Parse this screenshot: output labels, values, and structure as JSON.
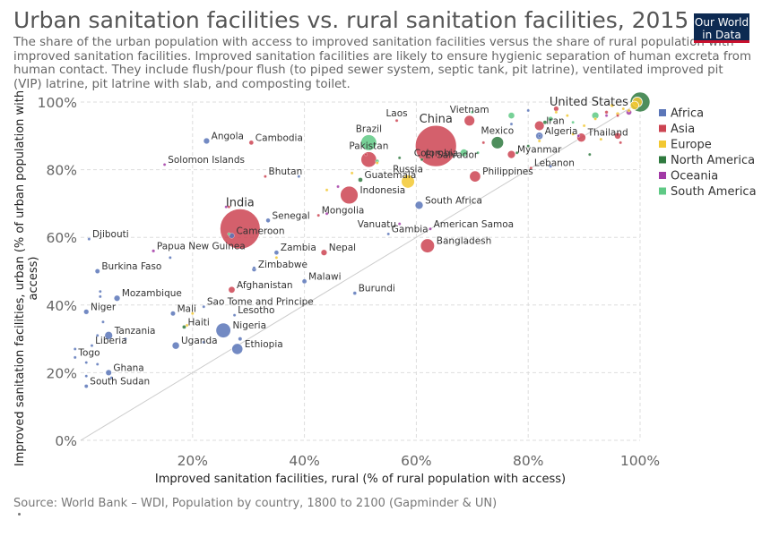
{
  "header": {
    "title": "Urban sanitation facilities vs. rural sanitation facilities, 2015",
    "subtitle": "The share of the urban population with access to improved sanitation facilities versus the share of rural population with improved sanitation facilities. Improved sanitation facilities are likely to ensure hygienic separation of human excreta from human contact. They include flush/pour flush (to piped sewer system, septic tank, pit latrine), ventilated improved pit (VIP) latrine, pit latrine with slab, and composting toilet.",
    "logo_line1": "Our World",
    "logo_line2": "in Data"
  },
  "footer": {
    "source": "Source: World Bank – WDI, Population by country, 1800 to 2100 (Gapminder & UN)"
  },
  "colors": {
    "Africa": "#5b76b8",
    "Asia": "#cc4452",
    "Europe": "#f2c832",
    "North America": "#2f7a3f",
    "Oceania": "#a23aa6",
    "South America": "#5fc985",
    "grid": "#dddddd",
    "diagonal": "#cccccc"
  },
  "chart_data": {
    "type": "scatter",
    "title": "Urban sanitation facilities vs. rural sanitation facilities, 2015",
    "xlabel": "Improved sanitation facilities, rural (% of rural population with access)",
    "ylabel": "Improved sanitation facilities, urban (% of urban population with access)",
    "xlim": [
      0,
      100
    ],
    "ylim": [
      0,
      100
    ],
    "x_ticks": [
      20,
      40,
      60,
      80,
      100
    ],
    "x_tick_labels": [
      "20%",
      "40%",
      "60%",
      "80%",
      "100%"
    ],
    "y_ticks": [
      0,
      20,
      40,
      60,
      80,
      100
    ],
    "y_tick_labels": [
      "0%",
      "20%",
      "40%",
      "60%",
      "80%",
      "100%"
    ],
    "grid": true,
    "legend_position": "right",
    "legend": [
      "Africa",
      "Asia",
      "Europe",
      "North America",
      "Oceania",
      "South America"
    ],
    "reference_line": "y = x",
    "size_variable": "population",
    "labeled_points": [
      {
        "name": "Laos",
        "region": "Asia",
        "x": 56.5,
        "y": 94.5,
        "pop": 7,
        "label_dir": "above"
      },
      {
        "name": "Vietnam",
        "region": "Asia",
        "x": 69.5,
        "y": 94.5,
        "pop": 93,
        "label_dir": "above"
      },
      {
        "name": "China",
        "region": "Asia",
        "x": 63.5,
        "y": 87,
        "pop": 1397,
        "label_dir": "above",
        "big": true
      },
      {
        "name": "United States",
        "region": "North America",
        "x": 100,
        "y": 100,
        "pop": 320,
        "label_dir": "left",
        "big": true
      },
      {
        "name": "Iran",
        "region": "Asia",
        "x": 82,
        "y": 93,
        "pop": 79,
        "label_dir": "right"
      },
      {
        "name": "Algeria",
        "region": "Africa",
        "x": 82,
        "y": 90,
        "pop": 40,
        "label_dir": "right"
      },
      {
        "name": "Thailand",
        "region": "Asia",
        "x": 89.5,
        "y": 89.5,
        "pop": 68,
        "label_dir": "right"
      },
      {
        "name": "Angola",
        "region": "Africa",
        "x": 22.5,
        "y": 88.5,
        "pop": 28,
        "label_dir": "right"
      },
      {
        "name": "Cambodia",
        "region": "Asia",
        "x": 30.5,
        "y": 88,
        "pop": 16,
        "label_dir": "right"
      },
      {
        "name": "Brazil",
        "region": "South America",
        "x": 51.5,
        "y": 88,
        "pop": 204,
        "label_dir": "above"
      },
      {
        "name": "Mexico",
        "region": "North America",
        "x": 74.5,
        "y": 88,
        "pop": 125,
        "label_dir": "above"
      },
      {
        "name": "Colombia",
        "region": "South America",
        "x": 68.5,
        "y": 85,
        "pop": 48,
        "label_dir": "left"
      },
      {
        "name": "Myanmar",
        "region": "Asia",
        "x": 77,
        "y": 84.5,
        "pop": 53,
        "label_dir": "right"
      },
      {
        "name": "Pakistan",
        "region": "Asia",
        "x": 51.5,
        "y": 83,
        "pop": 199,
        "label_dir": "above"
      },
      {
        "name": "El Salvador",
        "region": "North America",
        "x": 61,
        "y": 83,
        "pop": 6,
        "label_dir": "right"
      },
      {
        "name": "Solomon Islands",
        "region": "Oceania",
        "x": 15,
        "y": 81.5,
        "pop": 0.6,
        "label_dir": "right"
      },
      {
        "name": "Lebanon",
        "region": "Asia",
        "x": 80.5,
        "y": 80.5,
        "pop": 6,
        "label_dir": "right"
      },
      {
        "name": "Philippines",
        "region": "Asia",
        "x": 70.5,
        "y": 78,
        "pop": 102,
        "label_dir": "right"
      },
      {
        "name": "Russia",
        "region": "Europe",
        "x": 58.5,
        "y": 76.5,
        "pop": 144,
        "label_dir": "above"
      },
      {
        "name": "Bhutan",
        "region": "Asia",
        "x": 33,
        "y": 78,
        "pop": 0.8,
        "label_dir": "right"
      },
      {
        "name": "Guatemala",
        "region": "North America",
        "x": 50,
        "y": 77,
        "pop": 16,
        "label_dir": "right"
      },
      {
        "name": "Indonesia",
        "region": "Asia",
        "x": 48,
        "y": 72.5,
        "pop": 258,
        "label_dir": "right"
      },
      {
        "name": "South Africa",
        "region": "Africa",
        "x": 60.5,
        "y": 69.5,
        "pop": 55,
        "label_dir": "right"
      },
      {
        "name": "India",
        "region": "Asia",
        "x": 28.5,
        "y": 62.5,
        "pop": 1309,
        "label_dir": "above",
        "big": true
      },
      {
        "name": "Senegal",
        "region": "Africa",
        "x": 33.5,
        "y": 65,
        "pop": 15,
        "label_dir": "right"
      },
      {
        "name": "Mongolia",
        "region": "Asia",
        "x": 42.5,
        "y": 66.5,
        "pop": 3,
        "label_dir": "right"
      },
      {
        "name": "Vanuatu",
        "region": "Oceania",
        "x": 57,
        "y": 64,
        "pop": 0.3,
        "label_dir": "left"
      },
      {
        "name": "American Samoa",
        "region": "Oceania",
        "x": 62.5,
        "y": 62.5,
        "pop": 0.06,
        "label_dir": "right"
      },
      {
        "name": "Gambia",
        "region": "Africa",
        "x": 55,
        "y": 61,
        "pop": 2,
        "label_dir": "right"
      },
      {
        "name": "Cameroon",
        "region": "Africa",
        "x": 27,
        "y": 60.5,
        "pop": 23,
        "label_dir": "right"
      },
      {
        "name": "Djibouti",
        "region": "Africa",
        "x": 1.5,
        "y": 59.5,
        "pop": 0.9,
        "label_dir": "right"
      },
      {
        "name": "Bangladesh",
        "region": "Asia",
        "x": 62,
        "y": 57.5,
        "pop": 161,
        "label_dir": "right"
      },
      {
        "name": "Papua New Guinea",
        "region": "Oceania",
        "x": 13,
        "y": 56,
        "pop": 8,
        "label_dir": "right"
      },
      {
        "name": "Zambia",
        "region": "Africa",
        "x": 35,
        "y": 55.5,
        "pop": 16,
        "label_dir": "right"
      },
      {
        "name": "Nepal",
        "region": "Asia",
        "x": 43.5,
        "y": 55.5,
        "pop": 28,
        "label_dir": "right"
      },
      {
        "name": "Burkina Faso",
        "region": "Africa",
        "x": 3,
        "y": 50,
        "pop": 18,
        "label_dir": "right"
      },
      {
        "name": "Zimbabwe",
        "region": "Africa",
        "x": 31,
        "y": 50.5,
        "pop": 15,
        "label_dir": "right"
      },
      {
        "name": "Malawi",
        "region": "Africa",
        "x": 40,
        "y": 47,
        "pop": 17,
        "label_dir": "right"
      },
      {
        "name": "Afghanistan",
        "region": "Asia",
        "x": 27,
        "y": 44.5,
        "pop": 33,
        "label_dir": "right"
      },
      {
        "name": "Burundi",
        "region": "Africa",
        "x": 49,
        "y": 43.5,
        "pop": 10,
        "label_dir": "right"
      },
      {
        "name": "Mozambique",
        "region": "Africa",
        "x": 6.5,
        "y": 42,
        "pop": 28,
        "label_dir": "right"
      },
      {
        "name": "Sao Tome and Principe",
        "region": "Africa",
        "x": 22,
        "y": 39.5,
        "pop": 0.2,
        "label_dir": "right"
      },
      {
        "name": "Niger",
        "region": "Africa",
        "x": 1,
        "y": 38,
        "pop": 20,
        "label_dir": "right"
      },
      {
        "name": "Mali",
        "region": "Africa",
        "x": 16.5,
        "y": 37.5,
        "pop": 18,
        "label_dir": "right"
      },
      {
        "name": "Lesotho",
        "region": "Africa",
        "x": 27.5,
        "y": 37,
        "pop": 2,
        "label_dir": "right"
      },
      {
        "name": "Haiti",
        "region": "North America",
        "x": 18.5,
        "y": 33.5,
        "pop": 11,
        "label_dir": "right"
      },
      {
        "name": "Nigeria",
        "region": "Africa",
        "x": 25.5,
        "y": 32.5,
        "pop": 181,
        "label_dir": "right"
      },
      {
        "name": "Tanzania",
        "region": "Africa",
        "x": 5,
        "y": 31,
        "pop": 54,
        "label_dir": "right"
      },
      {
        "name": "Uganda",
        "region": "Africa",
        "x": 17,
        "y": 28,
        "pop": 40,
        "label_dir": "right"
      },
      {
        "name": "Ethiopia",
        "region": "Africa",
        "x": 28,
        "y": 27,
        "pop": 100,
        "label_dir": "right"
      },
      {
        "name": "Liberia",
        "region": "Africa",
        "x": 2,
        "y": 28,
        "pop": 4.5,
        "label_dir": "right"
      },
      {
        "name": "Togo",
        "region": "Africa",
        "x": -1,
        "y": 24.5,
        "pop": 7,
        "label_dir": "right"
      },
      {
        "name": "Ghana",
        "region": "Africa",
        "x": 5,
        "y": 20,
        "pop": 27,
        "label_dir": "right"
      },
      {
        "name": "South Sudan",
        "region": "Africa",
        "x": 1,
        "y": 16,
        "pop": 11,
        "label_dir": "right"
      }
    ],
    "unlabeled_points": [
      {
        "region": "Europe",
        "x": 95,
        "y": 99,
        "pop": 10
      },
      {
        "region": "Europe",
        "x": 97,
        "y": 98,
        "pop": 6
      },
      {
        "region": "Europe",
        "x": 99,
        "y": 99,
        "pop": 60
      },
      {
        "region": "Europe",
        "x": 98,
        "y": 97.5,
        "pop": 8
      },
      {
        "region": "Europe",
        "x": 92,
        "y": 95,
        "pop": 5
      },
      {
        "region": "Europe",
        "x": 87,
        "y": 96,
        "pop": 4
      },
      {
        "region": "Europe",
        "x": 90,
        "y": 93,
        "pop": 3
      },
      {
        "region": "Europe",
        "x": 85,
        "y": 97,
        "pop": 2
      },
      {
        "region": "Europe",
        "x": 99.5,
        "y": 100,
        "pop": 80
      },
      {
        "region": "Europe",
        "x": 96,
        "y": 96.5,
        "pop": 10
      },
      {
        "region": "Europe",
        "x": 93,
        "y": 89,
        "pop": 3
      },
      {
        "region": "Europe",
        "x": 88,
        "y": 90.5,
        "pop": 2
      },
      {
        "region": "Europe",
        "x": 82,
        "y": 88.5,
        "pop": 3
      },
      {
        "region": "Europe",
        "x": 53,
        "y": 82,
        "pop": 2
      },
      {
        "region": "Europe",
        "x": 48.5,
        "y": 79,
        "pop": 1.5
      },
      {
        "region": "Europe",
        "x": 44,
        "y": 74,
        "pop": 1
      },
      {
        "region": "Europe",
        "x": 35,
        "y": 54,
        "pop": 0.8
      },
      {
        "region": "Europe",
        "x": 20,
        "y": 37.5,
        "pop": 0.5
      },
      {
        "region": "Europe",
        "x": 19,
        "y": 34,
        "pop": 0.4
      },
      {
        "region": "Asia",
        "x": 94,
        "y": 97,
        "pop": 9
      },
      {
        "region": "Asia",
        "x": 96,
        "y": 90,
        "pop": 31
      },
      {
        "region": "Asia",
        "x": 96.5,
        "y": 88,
        "pop": 4
      },
      {
        "region": "Asia",
        "x": 85,
        "y": 98,
        "pop": 20
      },
      {
        "region": "Asia",
        "x": 72,
        "y": 88,
        "pop": 6
      },
      {
        "region": "Asia",
        "x": 51,
        "y": 84.5,
        "pop": 6
      },
      {
        "region": "Asia",
        "x": 26.5,
        "y": 69,
        "pop": 1
      },
      {
        "region": "Asia",
        "x": 96,
        "y": 96,
        "pop": 3
      },
      {
        "region": "North America",
        "x": 83,
        "y": 94,
        "pop": 11
      },
      {
        "region": "North America",
        "x": 91,
        "y": 84.5,
        "pop": 1
      },
      {
        "region": "North America",
        "x": 80,
        "y": 87,
        "pop": 2
      },
      {
        "region": "North America",
        "x": 78,
        "y": 85,
        "pop": 4
      },
      {
        "region": "North America",
        "x": 57,
        "y": 83.5,
        "pop": 1
      },
      {
        "region": "Oceania",
        "x": 89,
        "y": 90,
        "pop": 1
      },
      {
        "region": "Oceania",
        "x": 98,
        "y": 97,
        "pop": 24
      },
      {
        "region": "Oceania",
        "x": 94,
        "y": 96,
        "pop": 0.5
      },
      {
        "region": "Oceania",
        "x": 46,
        "y": 75,
        "pop": 0.3
      },
      {
        "region": "Oceania",
        "x": 44,
        "y": 67,
        "pop": 0.2
      },
      {
        "region": "Oceania",
        "x": 26,
        "y": 69,
        "pop": 0.1
      },
      {
        "region": "South America",
        "x": 84,
        "y": 95,
        "pop": 18
      },
      {
        "region": "South America",
        "x": 70,
        "y": 97,
        "pop": 3
      },
      {
        "region": "South America",
        "x": 71,
        "y": 85,
        "pop": 7
      },
      {
        "region": "South America",
        "x": 88,
        "y": 94,
        "pop": 3
      },
      {
        "region": "South America",
        "x": 77,
        "y": 96,
        "pop": 31
      },
      {
        "region": "South America",
        "x": 92,
        "y": 96,
        "pop": 43
      },
      {
        "region": "South America",
        "x": 53,
        "y": 82.5,
        "pop": 11
      },
      {
        "region": "South America",
        "x": 26.5,
        "y": 61,
        "pop": 0.8
      },
      {
        "region": "Africa",
        "x": 80,
        "y": 97.5,
        "pop": 4
      },
      {
        "region": "Africa",
        "x": 82,
        "y": 90,
        "pop": 3
      },
      {
        "region": "Africa",
        "x": 84,
        "y": 81,
        "pop": 2
      },
      {
        "region": "Africa",
        "x": 77,
        "y": 93.5,
        "pop": 1
      },
      {
        "region": "Africa",
        "x": 39,
        "y": 78,
        "pop": 0.5
      },
      {
        "region": "Africa",
        "x": 16,
        "y": 54,
        "pop": 1
      },
      {
        "region": "Africa",
        "x": 31,
        "y": 51,
        "pop": 2
      },
      {
        "region": "Africa",
        "x": 3.5,
        "y": 44,
        "pop": 5
      },
      {
        "region": "Africa",
        "x": 3.5,
        "y": 42.5,
        "pop": 4
      },
      {
        "region": "Africa",
        "x": 4,
        "y": 35,
        "pop": 3
      },
      {
        "region": "Africa",
        "x": 3,
        "y": 31,
        "pop": 1.5
      },
      {
        "region": "Africa",
        "x": 8,
        "y": 30,
        "pop": 2
      },
      {
        "region": "Africa",
        "x": 3,
        "y": 22.5,
        "pop": 1.5
      },
      {
        "region": "Africa",
        "x": 1,
        "y": 23,
        "pop": 1
      },
      {
        "region": "Africa",
        "x": 5.5,
        "y": 18.5,
        "pop": 1
      },
      {
        "region": "Africa",
        "x": -1,
        "y": 27,
        "pop": 1
      },
      {
        "region": "Africa",
        "x": 22,
        "y": 29,
        "pop": 4
      },
      {
        "region": "Africa",
        "x": 1,
        "y": 19,
        "pop": 1
      },
      {
        "region": "Africa",
        "x": 28.5,
        "y": 30,
        "pop": 12
      }
    ]
  }
}
